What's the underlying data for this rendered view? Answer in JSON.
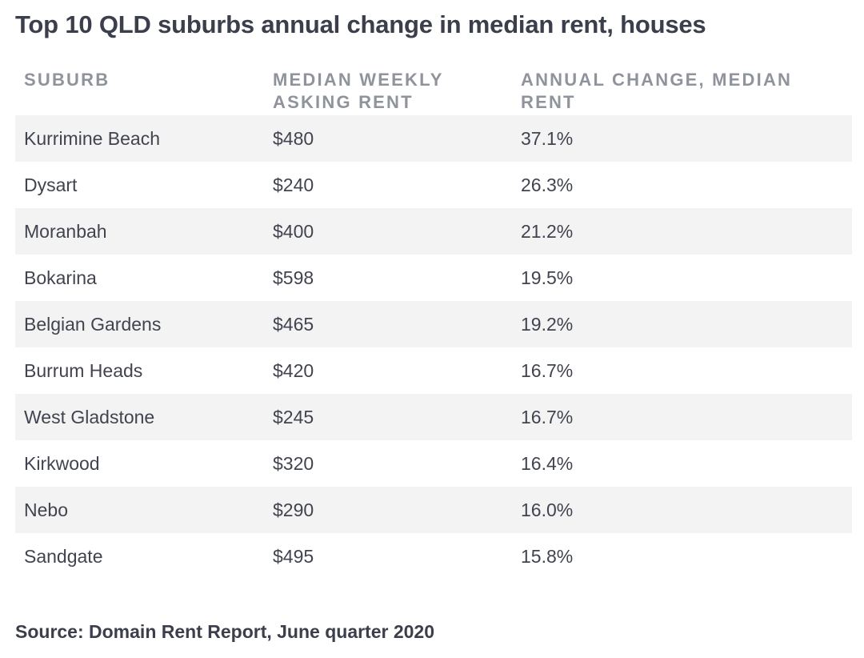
{
  "title": "Top 10 QLD suburbs annual change in median rent, houses",
  "table": {
    "headers": [
      "SUBURB",
      "MEDIAN WEEKLY ASKING RENT",
      "ANNUAL CHANGE, MEDIAN RENT"
    ],
    "rows": [
      [
        "Kurrimine Beach",
        "$480",
        "37.1%"
      ],
      [
        "Dysart",
        "$240",
        "26.3%"
      ],
      [
        "Moranbah",
        "$400",
        "21.2%"
      ],
      [
        "Bokarina",
        "$598",
        "19.5%"
      ],
      [
        "Belgian Gardens",
        "$465",
        "19.2%"
      ],
      [
        "Burrum Heads",
        "$420",
        "16.7%"
      ],
      [
        "West Gladstone",
        "$245",
        "16.7%"
      ],
      [
        "Kirkwood",
        "$320",
        "16.4%"
      ],
      [
        "Nebo",
        "$290",
        "16.0%"
      ],
      [
        "Sandgate",
        "$495",
        "15.8%"
      ]
    ]
  },
  "source": "Source: Domain Rent Report, June quarter 2020"
}
